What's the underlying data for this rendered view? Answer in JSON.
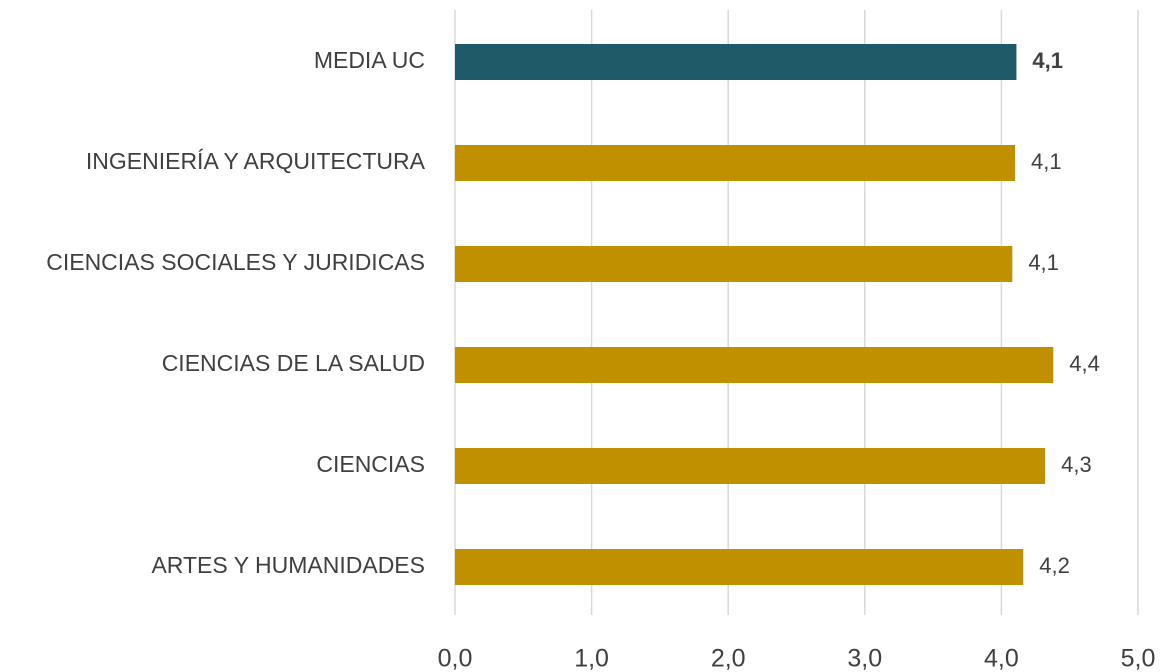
{
  "chart_data": {
    "type": "barh",
    "categories": [
      "MEDIA UC",
      "INGENIERÍA Y ARQUITECTURA",
      "CIENCIAS SOCIALES Y JURIDICAS",
      "CIENCIAS DE LA SALUD",
      "CIENCIAS",
      "ARTES Y HUMANIDADES"
    ],
    "values": [
      4.11,
      4.1,
      4.08,
      4.38,
      4.32,
      4.16
    ],
    "value_labels": [
      "4,1",
      "4,1",
      "4,1",
      "4,4",
      "4,3",
      "4,2"
    ],
    "colors": [
      "#1f5a68",
      "#c09000",
      "#c09000",
      "#c09000",
      "#c09000",
      "#c09000"
    ],
    "xlim": [
      0,
      5
    ],
    "xticks": [
      {
        "value": 0,
        "label": "0,0"
      },
      {
        "value": 1,
        "label": "1,0"
      },
      {
        "value": 2,
        "label": "2,0"
      },
      {
        "value": 3,
        "label": "3,0"
      },
      {
        "value": 4,
        "label": "4,0"
      },
      {
        "value": 5,
        "label": "5,0"
      }
    ],
    "grid": true
  }
}
